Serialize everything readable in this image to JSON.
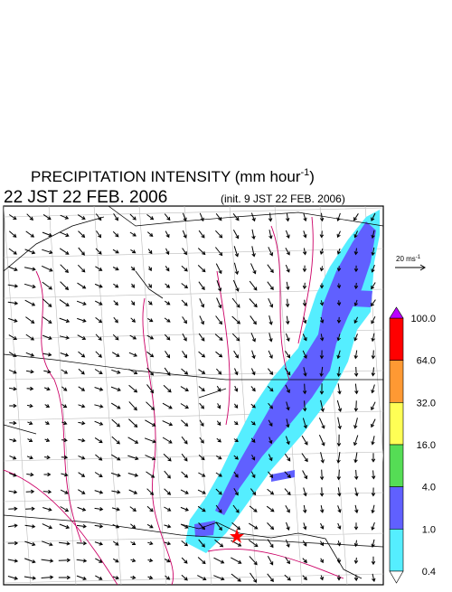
{
  "header": {
    "title": "PRECIPITATION INTENSITY (mm hour",
    "title_sup": "-1",
    "title_end": ")",
    "valid_time": "22 JST 22 FEB. 2006",
    "init_time": "(init. 9 JST 22 FEB. 2006)"
  },
  "vector_legend": {
    "label": "20 ms",
    "label_sup": "-1"
  },
  "colorbar": {
    "labels": [
      "100.0",
      "64.0",
      "32.0",
      "16.0",
      "4.0",
      "1.0",
      "0.4"
    ],
    "colors": [
      "#ff0000",
      "#ff9933",
      "#ffff55",
      "#55dd55",
      "#6060ff",
      "#55eeff"
    ],
    "over_color": "#bb00ff",
    "under_color": "#ffffff"
  }
}
